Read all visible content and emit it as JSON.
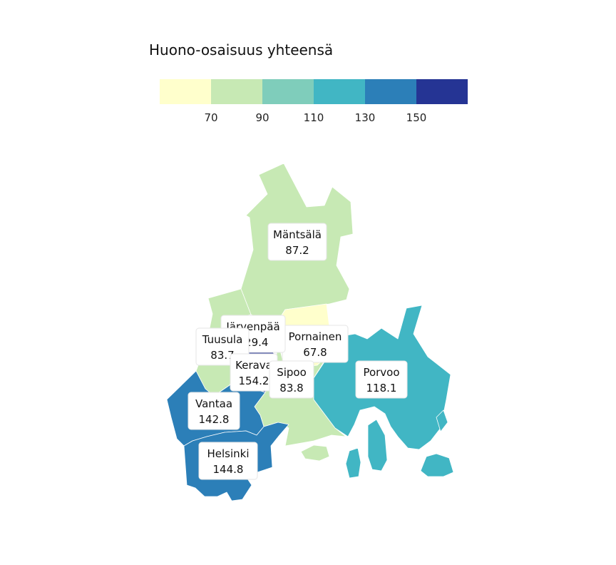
{
  "legend": {
    "title": "Huono-osaisuus yhteensä",
    "bins": [
      {
        "color": "#ffffcc"
      },
      {
        "color": "#c7e9b4"
      },
      {
        "color": "#7fcdbb"
      },
      {
        "color": "#41b6c4"
      },
      {
        "color": "#2c7fb8"
      },
      {
        "color": "#253494"
      }
    ],
    "ticks": [
      "70",
      "90",
      "110",
      "130",
      "150"
    ]
  },
  "regions": [
    {
      "id": "mantsala",
      "name": "Mäntsälä",
      "value": "87.2",
      "color": "#c7e9b4"
    },
    {
      "id": "pornainen",
      "name": "Pornainen",
      "value": "67.8",
      "color": "#ffffcc"
    },
    {
      "id": "jarvenpaa",
      "name": "Järvenpää",
      "value": "129.4",
      "color": "#41b6c4"
    },
    {
      "id": "tuusula",
      "name": "Tuusula",
      "value": "83.7",
      "color": "#c7e9b4"
    },
    {
      "id": "kerava",
      "name": "Kerava",
      "value": "154.2",
      "color": "#253494"
    },
    {
      "id": "sipoo",
      "name": "Sipoo",
      "value": "83.8",
      "color": "#c7e9b4"
    },
    {
      "id": "porvoo",
      "name": "Porvoo",
      "value": "118.1",
      "color": "#41b6c4"
    },
    {
      "id": "vantaa",
      "name": "Vantaa",
      "value": "142.8",
      "color": "#2c7fb8"
    },
    {
      "id": "helsinki",
      "name": "Helsinki",
      "value": "144.8",
      "color": "#2c7fb8"
    }
  ]
}
